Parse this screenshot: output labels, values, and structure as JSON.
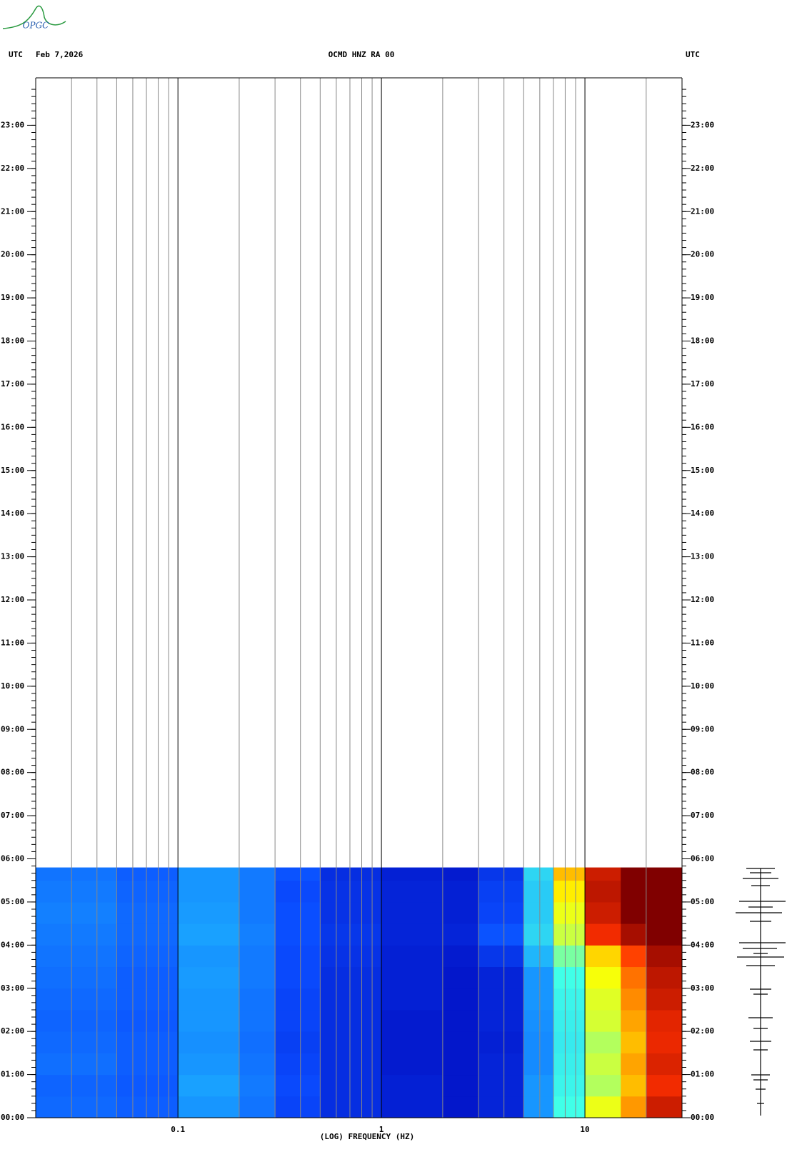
{
  "chart_data": {
    "type": "spectrogram",
    "logo": "OPGC",
    "left_label": "UTC",
    "date": "Feb 7,2026",
    "title": "OCMD HNZ RA 00",
    "right_label": "UTC",
    "xlabel": "(LOG) FREQUENCY (HZ)",
    "xscale": "log",
    "xlim": [
      0.02,
      30
    ],
    "xticks": [
      0.1,
      1,
      10
    ],
    "xminor": [
      0.03,
      0.04,
      0.05,
      0.06,
      0.07,
      0.08,
      0.09,
      0.2,
      0.3,
      0.4,
      0.5,
      0.6,
      0.7,
      0.8,
      0.9,
      2,
      3,
      4,
      5,
      6,
      7,
      8,
      9,
      20
    ],
    "ylim": [
      0,
      24
    ],
    "yticks": [
      {
        "value": 0,
        "label": "00:00"
      },
      {
        "value": 1,
        "label": "01:00"
      },
      {
        "value": 2,
        "label": "02:00"
      },
      {
        "value": 3,
        "label": "03:00"
      },
      {
        "value": 4,
        "label": "04:00"
      },
      {
        "value": 5,
        "label": "05:00"
      },
      {
        "value": 6,
        "label": "06:00"
      },
      {
        "value": 7,
        "label": "07:00"
      },
      {
        "value": 8,
        "label": "08:00"
      },
      {
        "value": 9,
        "label": "09:00"
      },
      {
        "value": 10,
        "label": "10:00"
      },
      {
        "value": 11,
        "label": "11:00"
      },
      {
        "value": 12,
        "label": "12:00"
      },
      {
        "value": 13,
        "label": "13:00"
      },
      {
        "value": 14,
        "label": "14:00"
      },
      {
        "value": 15,
        "label": "15:00"
      },
      {
        "value": 16,
        "label": "16:00"
      },
      {
        "value": 17,
        "label": "17:00"
      },
      {
        "value": 18,
        "label": "18:00"
      },
      {
        "value": 19,
        "label": "19:00"
      },
      {
        "value": 20,
        "label": "20:00"
      },
      {
        "value": 21,
        "label": "21:00"
      },
      {
        "value": 22,
        "label": "22:00"
      },
      {
        "value": 23,
        "label": "23:00"
      }
    ],
    "freq_bins": [
      0.02,
      0.05,
      0.1,
      0.2,
      0.3,
      0.5,
      1,
      2,
      3,
      5,
      7,
      10,
      15,
      20,
      30
    ],
    "time_bins": [
      0,
      0.5,
      1,
      1.5,
      2,
      2.5,
      3,
      3.5,
      4,
      4.5,
      5,
      5.5,
      5.8
    ],
    "intensity": [
      [
        0.22,
        0.2,
        0.3,
        0.24,
        0.15,
        0.1,
        0.07,
        0.05,
        0.08,
        0.3,
        0.5,
        0.65,
        0.75,
        0.9
      ],
      [
        0.21,
        0.19,
        0.32,
        0.25,
        0.16,
        0.1,
        0.07,
        0.05,
        0.08,
        0.3,
        0.48,
        0.6,
        0.72,
        0.85
      ],
      [
        0.23,
        0.2,
        0.3,
        0.24,
        0.15,
        0.1,
        0.06,
        0.05,
        0.08,
        0.28,
        0.47,
        0.62,
        0.74,
        0.88
      ],
      [
        0.22,
        0.2,
        0.29,
        0.23,
        0.14,
        0.1,
        0.06,
        0.05,
        0.07,
        0.28,
        0.46,
        0.6,
        0.72,
        0.86
      ],
      [
        0.21,
        0.19,
        0.3,
        0.24,
        0.15,
        0.1,
        0.06,
        0.05,
        0.08,
        0.29,
        0.47,
        0.63,
        0.74,
        0.87
      ],
      [
        0.22,
        0.2,
        0.3,
        0.24,
        0.15,
        0.1,
        0.07,
        0.05,
        0.08,
        0.3,
        0.48,
        0.64,
        0.76,
        0.9
      ],
      [
        0.23,
        0.2,
        0.31,
        0.25,
        0.16,
        0.1,
        0.07,
        0.05,
        0.08,
        0.3,
        0.5,
        0.66,
        0.78,
        0.92
      ],
      [
        0.24,
        0.21,
        0.3,
        0.25,
        0.16,
        0.11,
        0.07,
        0.06,
        0.12,
        0.36,
        0.55,
        0.7,
        0.82,
        0.95
      ],
      [
        0.25,
        0.22,
        0.32,
        0.26,
        0.17,
        0.12,
        0.08,
        0.08,
        0.18,
        0.42,
        0.62,
        0.85,
        0.95,
        1
      ],
      [
        0.26,
        0.22,
        0.31,
        0.25,
        0.17,
        0.11,
        0.08,
        0.07,
        0.15,
        0.4,
        0.65,
        0.9,
        1,
        1
      ],
      [
        0.25,
        0.21,
        0.3,
        0.25,
        0.16,
        0.11,
        0.08,
        0.07,
        0.14,
        0.4,
        0.68,
        0.92,
        1,
        1
      ],
      [
        0.24,
        0.2,
        0.3,
        0.25,
        0.18,
        0.1,
        0.07,
        0.06,
        0.12,
        0.42,
        0.72,
        0.9,
        1,
        1
      ]
    ],
    "colormap": [
      "#0000b4",
      "#0a4cff",
      "#1aa8ff",
      "#40ffe8",
      "#ffff00",
      "#ff3000",
      "#800000"
    ],
    "grid": true
  }
}
